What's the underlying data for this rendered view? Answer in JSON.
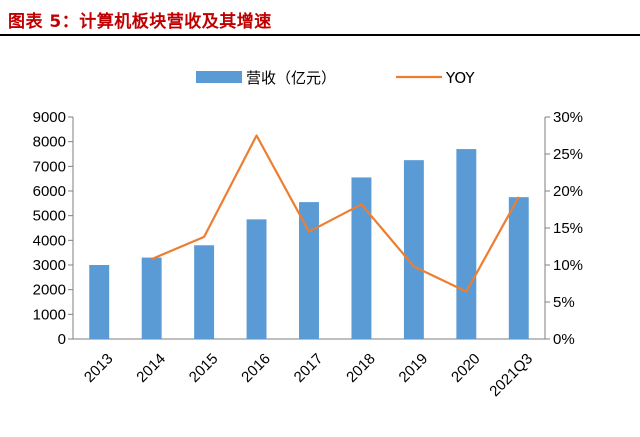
{
  "figure": {
    "title": "图表 5：计算机板块营收及其增速"
  },
  "colors": {
    "title": "#c00000",
    "bar": "#5b9bd5",
    "line": "#ed7d31",
    "axis": "#7f7f7f"
  },
  "chart_data": {
    "type": "bar",
    "categories": [
      "2013",
      "2014",
      "2015",
      "2016",
      "2017",
      "2018",
      "2019",
      "2020",
      "2021Q3"
    ],
    "series": [
      {
        "name": "营收（亿元）",
        "type": "bar",
        "axis": "left",
        "values": [
          3000,
          3300,
          3800,
          4850,
          5550,
          6550,
          7250,
          7700,
          5750
        ]
      },
      {
        "name": "YOY",
        "type": "line",
        "axis": "right",
        "values": [
          null,
          0.108,
          0.138,
          0.275,
          0.145,
          0.182,
          0.098,
          0.064,
          0.192
        ]
      }
    ],
    "y_left": {
      "min": 0,
      "max": 9000,
      "ticks": [
        "0",
        "1000",
        "2000",
        "3000",
        "4000",
        "5000",
        "6000",
        "7000",
        "8000",
        "9000"
      ]
    },
    "y_right": {
      "min": 0,
      "max": 0.3,
      "ticks": [
        "0%",
        "5%",
        "10%",
        "15%",
        "20%",
        "25%",
        "30%"
      ]
    },
    "grid": false,
    "legend_position": "top"
  }
}
